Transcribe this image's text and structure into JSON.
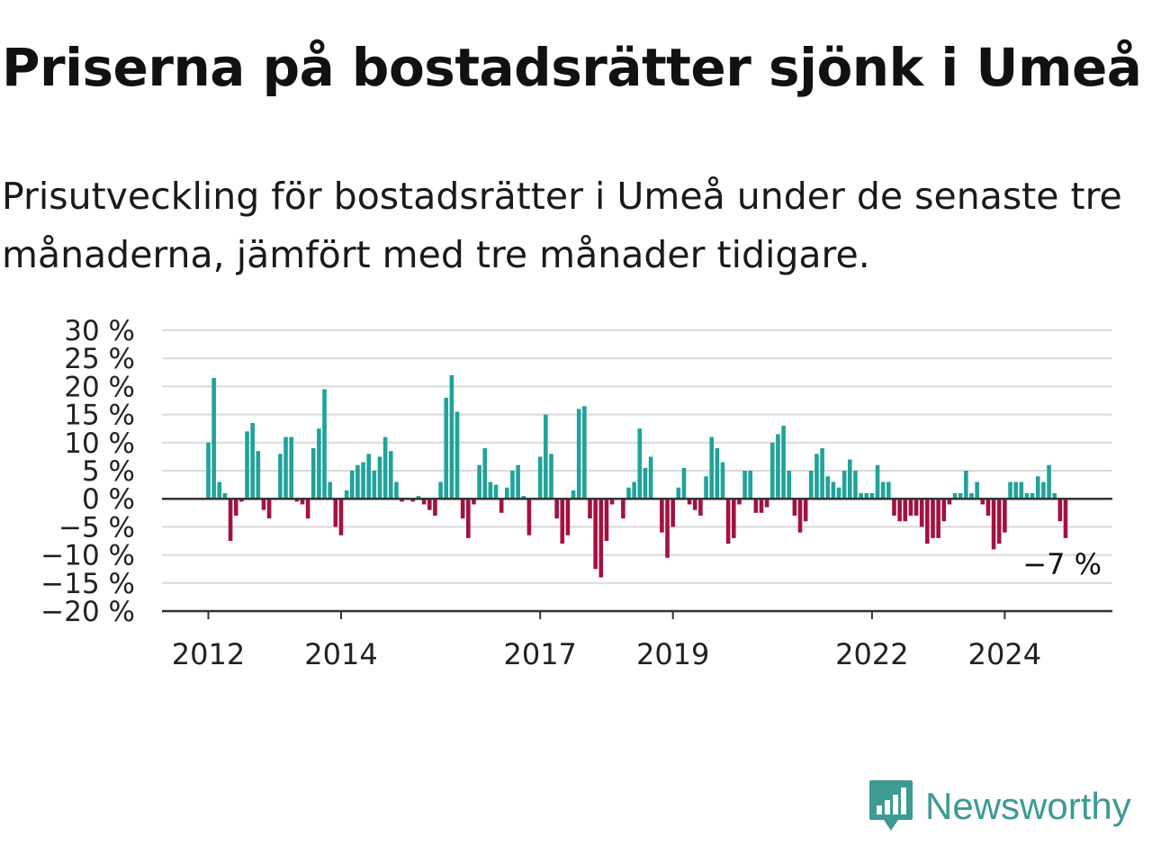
{
  "title": "Priserna på bostadsrätter sjönk i Umeå",
  "subtitle": "Prisutveckling för bostadsrätter i Umeå under de senaste tre månaderna, jämfört med tre månader tidigare.",
  "brand": {
    "name": "Newsworthy",
    "icon": "newsworthy-logo-icon",
    "color": "#3d9b93"
  },
  "colors": {
    "positive": "#1fa39a",
    "negative": "#a3113f",
    "grid": "#d9d9d9",
    "axis": "#333333"
  },
  "chart_data": {
    "type": "bar",
    "title": "Priserna på bostadsrätter sjönk i Umeå",
    "ylim": [
      -20,
      30
    ],
    "yticks": [
      30,
      25,
      20,
      15,
      10,
      5,
      0,
      -5,
      -10,
      -15,
      -20
    ],
    "ytick_labels": [
      "30 %",
      "25 %",
      "20 %",
      "15 %",
      "10 %",
      "5 %",
      "0 %",
      "−5 %",
      "−10 %",
      "−15 %",
      "−20 %"
    ],
    "xticks": [
      {
        "label": "2012",
        "year": 2012
      },
      {
        "label": "2014",
        "year": 2014
      },
      {
        "label": "2017",
        "year": 2017
      },
      {
        "label": "2019",
        "year": 2019
      },
      {
        "label": "2022",
        "year": 2022
      },
      {
        "label": "2024",
        "year": 2024
      }
    ],
    "x_start": "2012-01",
    "x_end": "2025-08",
    "grid": true,
    "last_value_label": "−7 %",
    "values": [
      10,
      21.5,
      3,
      1,
      -7.5,
      -3,
      -0.5,
      12,
      13.5,
      8.5,
      -2,
      -3.5,
      0,
      8,
      11,
      11,
      -0.5,
      -1,
      -3.5,
      9,
      12.5,
      19.5,
      3,
      -5,
      -6.5,
      1.5,
      5,
      6,
      6.5,
      8,
      5,
      7.5,
      11,
      8.5,
      3,
      -0.5,
      0,
      -0.5,
      0.5,
      -1,
      -2,
      -3,
      3,
      18,
      22,
      15.5,
      -3.5,
      -7,
      -1,
      6,
      9,
      3,
      2.5,
      -2.5,
      2,
      5,
      6,
      0.5,
      -6.5,
      0,
      7.5,
      15,
      8,
      -3.5,
      -8,
      -6.5,
      1.5,
      16,
      16.5,
      -3.5,
      -12.5,
      -14,
      -7.5,
      -1,
      0,
      -3.5,
      2,
      3,
      12.5,
      5.5,
      7.5,
      0,
      -6,
      -10.5,
      -5,
      2,
      5.5,
      -1,
      -2,
      -3,
      4,
      11,
      9,
      6.5,
      -8,
      -7,
      -1,
      5,
      5,
      -2.5,
      -2.5,
      -1.5,
      10,
      11.5,
      13,
      5,
      -3,
      -6,
      -4,
      5,
      8,
      9,
      4,
      3,
      2,
      5,
      7,
      5,
      1,
      1,
      1,
      6,
      3,
      3,
      -3,
      -4,
      -4,
      -3,
      -3,
      -5,
      -8,
      -7,
      -7,
      -4,
      -1,
      1,
      1,
      5,
      1,
      3,
      -1,
      -3,
      -9,
      -8,
      -6,
      3,
      3,
      3,
      1,
      1,
      4,
      3,
      6,
      1,
      -4,
      -7
    ]
  }
}
